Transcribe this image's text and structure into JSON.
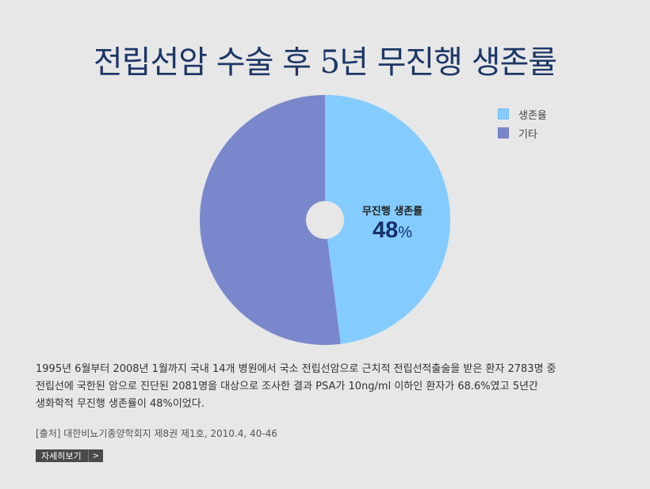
{
  "title": "전립선암 수술 후 5년 무진행 생존률",
  "legend": [
    {
      "label": "생존율",
      "color": "#84ccff"
    },
    {
      "label": "기타",
      "color": "#7b87cc"
    }
  ],
  "center": {
    "label": "무진행 생존률",
    "value": "48",
    "unit": "%"
  },
  "chart_data": {
    "type": "pie",
    "title": "전립선암 수술 후 5년 무진행 생존률",
    "slices": [
      {
        "label": "생존율",
        "value": 48,
        "color": "#84ccff"
      },
      {
        "label": "기타",
        "value": 52,
        "color": "#7b87cc"
      }
    ],
    "legend_position": "top-right"
  },
  "description": {
    "line1": "1995년 6월부터 2008년 1월까지 국내 14개 병원에서 국소 전립선암으로 근치적 전립선적출술을 받은 환자 2783명 중",
    "line2": "전립선에 국한된 암으로 진단된 2081명을 대상으로 조사한 결과 PSA가 10ng/ml 이하인 환자가 68.6%였고 5년간",
    "line3": "생화학적 무진행 생존률이 48%이었다."
  },
  "source": "[출처] 대한비뇨기종양학회지 제8권 제1호, 2010.4, 40-46",
  "more_button": {
    "label": "자세히보기",
    "chevron": ">"
  }
}
